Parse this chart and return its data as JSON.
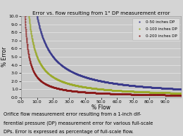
{
  "title": "Error vs. flow resulting from 1\" DP measurement error",
  "xlabel": "% Flow",
  "ylabel": "% Error",
  "xlim": [
    0.0,
    100.0
  ],
  "ylim": [
    0.0,
    10.0
  ],
  "yticks": [
    0.0,
    1.0,
    2.0,
    3.0,
    4.0,
    5.0,
    6.0,
    7.0,
    8.0,
    9.0,
    10.0
  ],
  "xticks": [
    0.0,
    10.0,
    20.0,
    30.0,
    40.0,
    50.0,
    60.0,
    70.0,
    80.0,
    90.0
  ],
  "series": [
    {
      "label": "0-50 inches DP",
      "full_scale_dp": 50,
      "color": "#3a3a8c",
      "line_color": "#3a3a8c"
    },
    {
      "label": "0-100 inches DP",
      "full_scale_dp": 100,
      "color": "#9aaa2a",
      "line_color": "#9aaa2a"
    },
    {
      "label": "0-200 inches DP",
      "full_scale_dp": 200,
      "color": "#8b1a1a",
      "line_color": "#8b1a1a"
    }
  ],
  "caption_line1": "Orifice flow measurement error resulting from a 1-inch dif-",
  "caption_line2": "ferential pressure (DP) measurement error for various full-scale",
  "caption_line3": "DPs. Error is expressed as percentage of full-scale flow.",
  "background_color": "#d4d4d4",
  "plot_bg_color": "#c8c8c8",
  "grid_color": "#e8e8e8",
  "title_fontsize": 5.2,
  "label_fontsize": 5.5,
  "tick_fontsize": 4.5,
  "legend_fontsize": 4.0,
  "caption_fontsize": 4.8
}
